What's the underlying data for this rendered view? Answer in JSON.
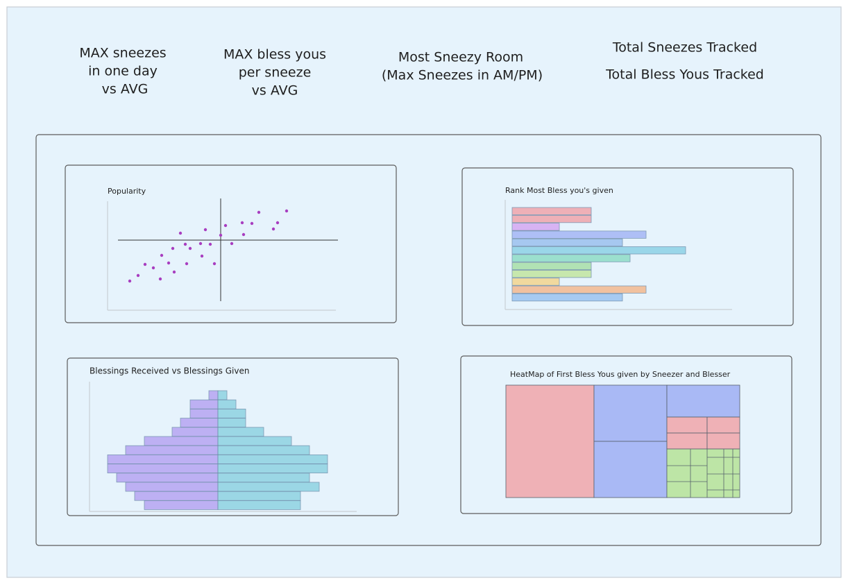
{
  "header": {
    "kpis": [
      {
        "lines": [
          "MAX sneezes",
          "in one day",
          "vs AVG"
        ]
      },
      {
        "lines": [
          "MAX bless yous",
          "per sneeze",
          "vs AVG"
        ]
      },
      {
        "lines": [
          "Most Sneezy Room",
          "(Max Sneezes in AM/PM)"
        ]
      },
      {
        "lines": [
          "Total Sneezes Tracked",
          "Total Bless Yous Tracked"
        ]
      }
    ]
  },
  "panels": [
    {
      "title": "Popularity"
    },
    {
      "title": "Rank Most Bless you's given"
    },
    {
      "title": "Blessings Received vs Blessings Given"
    },
    {
      "title": "HeatMap of First Bless Yous given by Sneezer and Blesser"
    }
  ]
}
